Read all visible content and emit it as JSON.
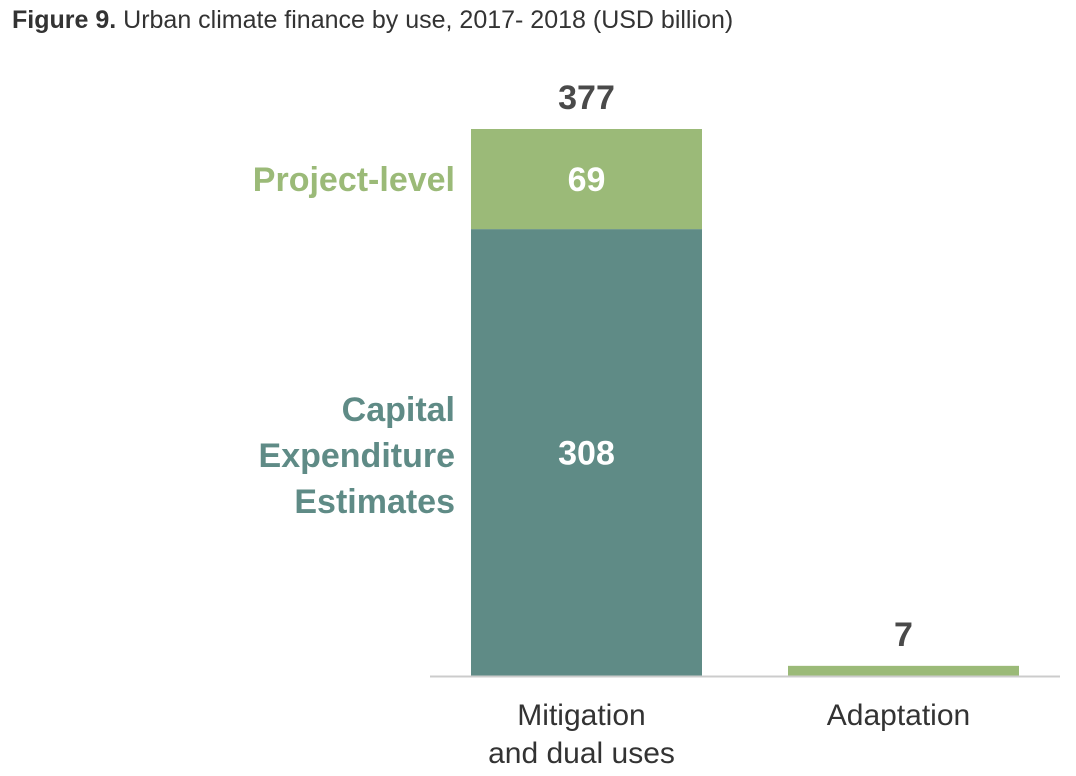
{
  "figure": {
    "label": "Figure 9.",
    "title": "Urban climate finance by use, 2017- 2018 (USD billion)"
  },
  "colors": {
    "project_level": "#9bba78",
    "capex": "#5f8b86",
    "total_label": "#4a4a4a",
    "axis": "#cccccc",
    "category_label": "#333333"
  },
  "chart_data": {
    "type": "bar",
    "stacked": true,
    "categories": [
      "Mitigation and dual uses",
      "Adaptation"
    ],
    "category_label_lines": [
      [
        "Mitigation",
        "and dual uses"
      ],
      [
        "Adaptation"
      ]
    ],
    "series": [
      {
        "name": "Capital Expenditure Estimates",
        "name_lines": [
          "Capital",
          "Expenditure",
          "Estimates"
        ],
        "color": "#5f8b86",
        "values": [
          308,
          0
        ],
        "value_labels": [
          "308",
          ""
        ]
      },
      {
        "name": "Project-level",
        "name_lines": [
          "Project-level"
        ],
        "color": "#9bba78",
        "values": [
          69,
          7
        ],
        "value_labels": [
          "69",
          ""
        ]
      }
    ],
    "totals": [
      377,
      7
    ],
    "total_labels": [
      "377",
      "7"
    ],
    "ylim": [
      0,
      377
    ],
    "grid": false,
    "legend": "inline-left"
  }
}
